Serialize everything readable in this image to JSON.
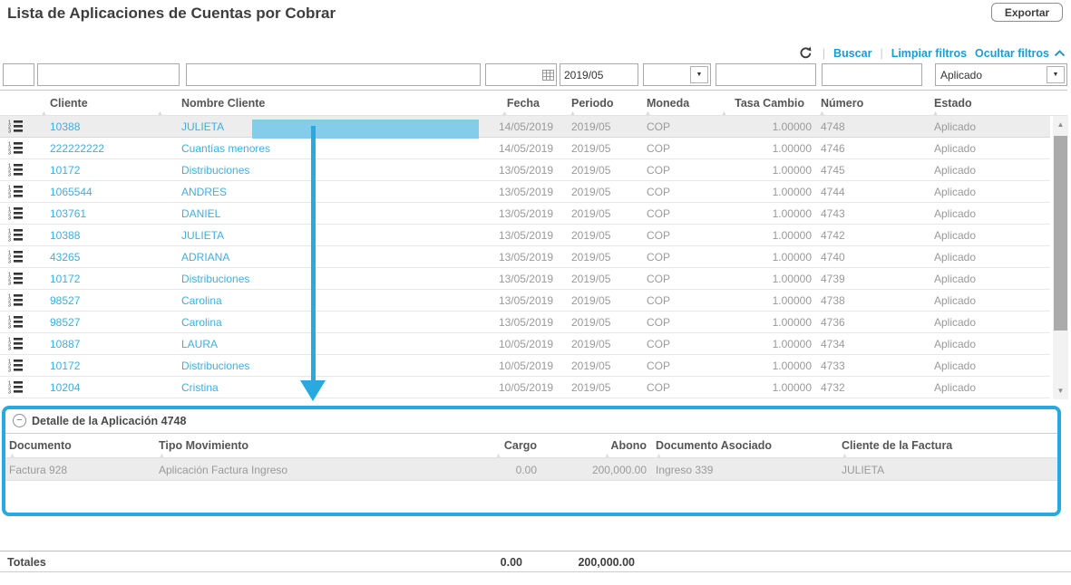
{
  "page": {
    "title": "Lista de Aplicaciones de Cuentas por Cobrar"
  },
  "toolbar": {
    "export": "Exportar"
  },
  "actions": {
    "sep": "|",
    "buscar": "Buscar",
    "limpiar": "Limpiar filtros",
    "ocultar": "Ocultar filtros"
  },
  "icons": {
    "refresh": "refresh-icon",
    "calendar": "calendar-grid-icon",
    "chevron_up": "chevron-up-icon",
    "dropdown": "▼",
    "collapse": "−",
    "row_detail": "numbered-list-icon",
    "sort": "▲",
    "scroll_up": "▲",
    "scroll_down": "▼"
  },
  "filters": {
    "fecha": "",
    "periodo": "2019/05",
    "moneda": "",
    "tasa_cambio": "",
    "numero": "",
    "estado": "Aplicado"
  },
  "table": {
    "columns": [
      "Cliente",
      "Nombre Cliente",
      "Fecha",
      "Periodo",
      "Moneda",
      "Tasa Cambio",
      "Número",
      "Estado"
    ],
    "rows": [
      {
        "cliente": "10388",
        "nombre": "JULIETA",
        "fecha": "14/05/2019",
        "periodo": "2019/05",
        "moneda": "COP",
        "tasa": "1.00000",
        "numero": "4748",
        "estado": "Aplicado",
        "selected": true
      },
      {
        "cliente": "222222222",
        "nombre": "Cuantías menores",
        "fecha": "14/05/2019",
        "periodo": "2019/05",
        "moneda": "COP",
        "tasa": "1.00000",
        "numero": "4746",
        "estado": "Aplicado",
        "selected": false
      },
      {
        "cliente": "10172",
        "nombre": "Distribuciones",
        "fecha": "13/05/2019",
        "periodo": "2019/05",
        "moneda": "COP",
        "tasa": "1.00000",
        "numero": "4745",
        "estado": "Aplicado",
        "selected": false
      },
      {
        "cliente": "1065544",
        "nombre": "ANDRES",
        "fecha": "13/05/2019",
        "periodo": "2019/05",
        "moneda": "COP",
        "tasa": "1.00000",
        "numero": "4744",
        "estado": "Aplicado",
        "selected": false
      },
      {
        "cliente": "103761",
        "nombre": "DANIEL",
        "fecha": "13/05/2019",
        "periodo": "2019/05",
        "moneda": "COP",
        "tasa": "1.00000",
        "numero": "4743",
        "estado": "Aplicado",
        "selected": false
      },
      {
        "cliente": "10388",
        "nombre": "JULIETA",
        "fecha": "13/05/2019",
        "periodo": "2019/05",
        "moneda": "COP",
        "tasa": "1.00000",
        "numero": "4742",
        "estado": "Aplicado",
        "selected": false
      },
      {
        "cliente": "43265",
        "nombre": "ADRIANA",
        "fecha": "13/05/2019",
        "periodo": "2019/05",
        "moneda": "COP",
        "tasa": "1.00000",
        "numero": "4740",
        "estado": "Aplicado",
        "selected": false
      },
      {
        "cliente": "10172",
        "nombre": "Distribuciones",
        "fecha": "13/05/2019",
        "periodo": "2019/05",
        "moneda": "COP",
        "tasa": "1.00000",
        "numero": "4739",
        "estado": "Aplicado",
        "selected": false
      },
      {
        "cliente": "98527",
        "nombre": "Carolina",
        "fecha": "13/05/2019",
        "periodo": "2019/05",
        "moneda": "COP",
        "tasa": "1.00000",
        "numero": "4738",
        "estado": "Aplicado",
        "selected": false
      },
      {
        "cliente": "98527",
        "nombre": "Carolina",
        "fecha": "13/05/2019",
        "periodo": "2019/05",
        "moneda": "COP",
        "tasa": "1.00000",
        "numero": "4736",
        "estado": "Aplicado",
        "selected": false
      },
      {
        "cliente": "10887",
        "nombre": "LAURA",
        "fecha": "10/05/2019",
        "periodo": "2019/05",
        "moneda": "COP",
        "tasa": "1.00000",
        "numero": "4734",
        "estado": "Aplicado",
        "selected": false
      },
      {
        "cliente": "10172",
        "nombre": "Distribuciones",
        "fecha": "10/05/2019",
        "periodo": "2019/05",
        "moneda": "COP",
        "tasa": "1.00000",
        "numero": "4733",
        "estado": "Aplicado",
        "selected": false
      },
      {
        "cliente": "10204",
        "nombre": "Cristina",
        "fecha": "10/05/2019",
        "periodo": "2019/05",
        "moneda": "COP",
        "tasa": "1.00000",
        "numero": "4732",
        "estado": "Aplicado",
        "selected": false
      }
    ]
  },
  "detail": {
    "title": "Detalle de la Aplicación 4748",
    "columns": [
      "Documento",
      "Tipo Movimiento",
      "Cargo",
      "Abono",
      "Documento Asociado",
      "Cliente de la Factura"
    ],
    "rows": [
      {
        "documento": "Factura 928",
        "tipo": "Aplicación Factura Ingreso",
        "cargo": "0.00",
        "abono": "200,000.00",
        "doc_asociado": "Ingreso 339",
        "cliente": "JULIETA"
      }
    ]
  },
  "totals": {
    "label": "Totales",
    "cargo": "0.00",
    "abono": "200,000.00"
  },
  "colors": {
    "annotation_blue": "#29a9e1",
    "highlight_blue": "#85cbea",
    "link_blue": "#41aede",
    "action_link_blue": "#1b9bd4",
    "selected_row_bg": "#ededed"
  }
}
